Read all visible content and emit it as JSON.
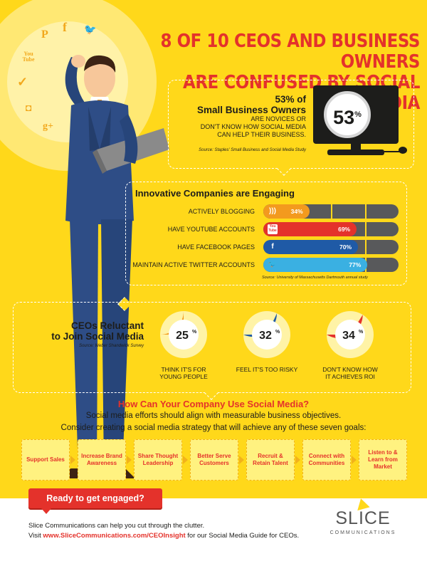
{
  "title": {
    "line1": "8 OF 10 CEOS AND BUSINESS OWNERS",
    "line2": "ARE CONFUSED BY SOCIAL MEDIA"
  },
  "social_icons": [
    {
      "name": "pinterest-icon",
      "glyph": "P"
    },
    {
      "name": "facebook-icon",
      "glyph": "f"
    },
    {
      "name": "twitter-icon",
      "glyph": "🐦"
    },
    {
      "name": "youtube-icon",
      "glyph": "You Tube"
    },
    {
      "name": "checkmark-icon",
      "glyph": "✓"
    },
    {
      "name": "instagram-icon",
      "glyph": "◘"
    },
    {
      "name": "googleplus-icon",
      "glyph": "g+"
    }
  ],
  "small_business": {
    "headline_line1": "53% of",
    "headline_line2": "Small Business Owners",
    "text_line1": "ARE NOVICES OR",
    "text_line2": "DON'T KNOW HOW SOCIAL MEDIA",
    "text_line3": "CAN HELP THEIR BUSINESS.",
    "source": "Source: Staples' Small Business and Social Media Study",
    "percent_number": "53",
    "percent_sign": "%"
  },
  "innovative": {
    "heading": "Innovative Companies are Engaging",
    "source": "Source: University of Massachusetts Dartmouth annual study",
    "items": [
      {
        "label": "ACTIVELY BLOGGING",
        "value": 34,
        "value_text": "34%",
        "color": "#f39a1e",
        "icon": "rss-icon",
        "glyph": ")))"
      },
      {
        "label": "HAVE YOUTUBE ACCOUNTS",
        "value": 69,
        "value_text": "69%",
        "color": "#e4322b",
        "icon": "youtube-icon",
        "glyph": "You Tube"
      },
      {
        "label": "HAVE FACEBOOK PAGES",
        "value": 70,
        "value_text": "70%",
        "color": "#1f5aa6",
        "icon": "facebook-icon",
        "glyph": "f"
      },
      {
        "label": "MAINTAIN ACTIVE TWITTER ACCOUNTS",
        "value": 77,
        "value_text": "77%",
        "color": "#3ab0e2",
        "icon": "twitter-icon",
        "glyph": "🐦"
      }
    ]
  },
  "ceos": {
    "heading_line1": "CEOs Reluctant",
    "heading_line2": "to Join Social Media",
    "source": "Source: Weber Shandwick Survey",
    "items": [
      {
        "value": 25,
        "number": "25",
        "sign": "%",
        "label_line1": "THINK IT'S FOR",
        "label_line2": "YOUNG PEOPLE",
        "color": "#f39a1e"
      },
      {
        "value": 32,
        "number": "32",
        "sign": "%",
        "label_line1": "FEEL IT'S TOO RISKY",
        "label_line2": "",
        "color": "#1f5aa6"
      },
      {
        "value": 34,
        "number": "34",
        "sign": "%",
        "label_line1": "DON'T KNOW HOW",
        "label_line2": "IT ACHIEVES ROI",
        "color": "#e4322b"
      }
    ]
  },
  "how": {
    "heading": "How Can Your Company Use Social Media?",
    "line1": "Social media efforts should align with measurable business objectives.",
    "line2": "Consider creating a social media strategy that will achieve any of these seven goals:"
  },
  "goals": [
    "Support Sales",
    "Increase Brand Awareness",
    "Share Thought Leadership",
    "Better Serve Customers",
    "Recruit & Retain Talent",
    "Connect with Communities",
    "Listen to & Learn from Market"
  ],
  "footer": {
    "cta": "Ready to get engaged?",
    "line1": "Slice Communications can help you cut through the clutter.",
    "line2_pre": "Visit ",
    "line2_link": "www.SliceCommunications.com/CEOInsight",
    "line2_post": " for our Social Media Guide for CEOs.",
    "logo_text": "SLICE",
    "logo_sub": "COMMUNICATIONS"
  }
}
